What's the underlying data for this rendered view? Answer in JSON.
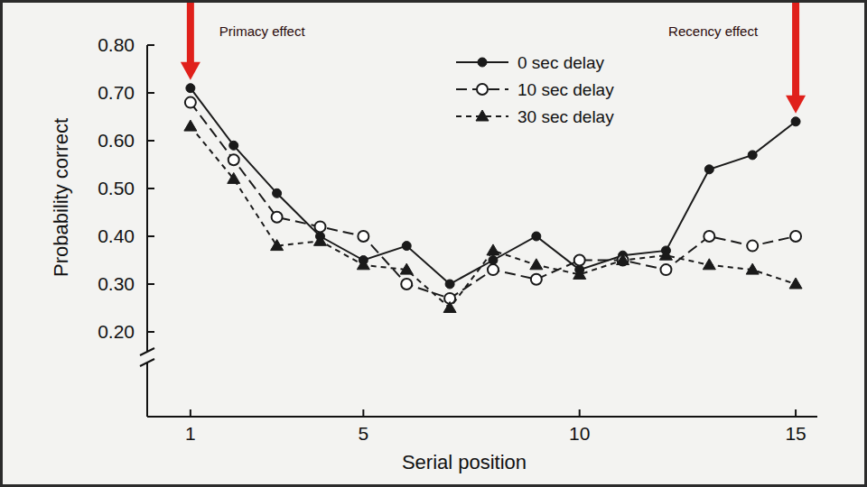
{
  "chart_data": {
    "type": "line",
    "x_label": "Serial position",
    "y_label": "Probability correct",
    "x": [
      1,
      2,
      3,
      4,
      5,
      6,
      7,
      8,
      9,
      10,
      11,
      12,
      13,
      14,
      15
    ],
    "series": [
      {
        "name": "0 sec delay",
        "color": "#1a1a1a",
        "marker": "circle",
        "line_style": "solid",
        "values": [
          0.71,
          0.59,
          0.49,
          0.4,
          0.35,
          0.38,
          0.3,
          0.35,
          0.4,
          0.33,
          0.36,
          0.37,
          0.54,
          0.57,
          0.64
        ]
      },
      {
        "name": "10 sec delay",
        "color": "#1a1a1a",
        "marker": "open-circle",
        "line_style": "dashed",
        "values": [
          0.68,
          0.56,
          0.44,
          0.42,
          0.4,
          0.3,
          0.27,
          0.33,
          0.31,
          0.35,
          0.35,
          0.33,
          0.4,
          0.38,
          0.4
        ]
      },
      {
        "name": "30 sec delay",
        "color": "#1a1a1a",
        "marker": "triangle",
        "line_style": "dotted",
        "values": [
          0.63,
          0.52,
          0.38,
          0.39,
          0.34,
          0.33,
          0.25,
          0.37,
          0.34,
          0.32,
          0.35,
          0.36,
          0.34,
          0.33,
          0.3
        ]
      }
    ],
    "xlim": [
      0,
      15.5
    ],
    "xticks": [
      1,
      5,
      10,
      15
    ],
    "ylim": [
      0.2,
      0.8
    ],
    "yticks": [
      {
        "value": 0.2,
        "label": "0.20"
      },
      {
        "value": 0.3,
        "label": "0.30"
      },
      {
        "value": 0.4,
        "label": "0.40"
      },
      {
        "value": 0.5,
        "label": "0.50"
      },
      {
        "value": 0.6,
        "label": "0.60"
      },
      {
        "value": 0.7,
        "label": "0.70"
      },
      {
        "value": 0.8,
        "label": "0.80"
      }
    ],
    "grid": false,
    "legend": "upper right",
    "annotations": [
      {
        "text": "Primacy effect",
        "x": 1,
        "color": "#e0201b"
      },
      {
        "text": "Recency effect",
        "x": 15,
        "color": "#e0201b"
      }
    ]
  }
}
